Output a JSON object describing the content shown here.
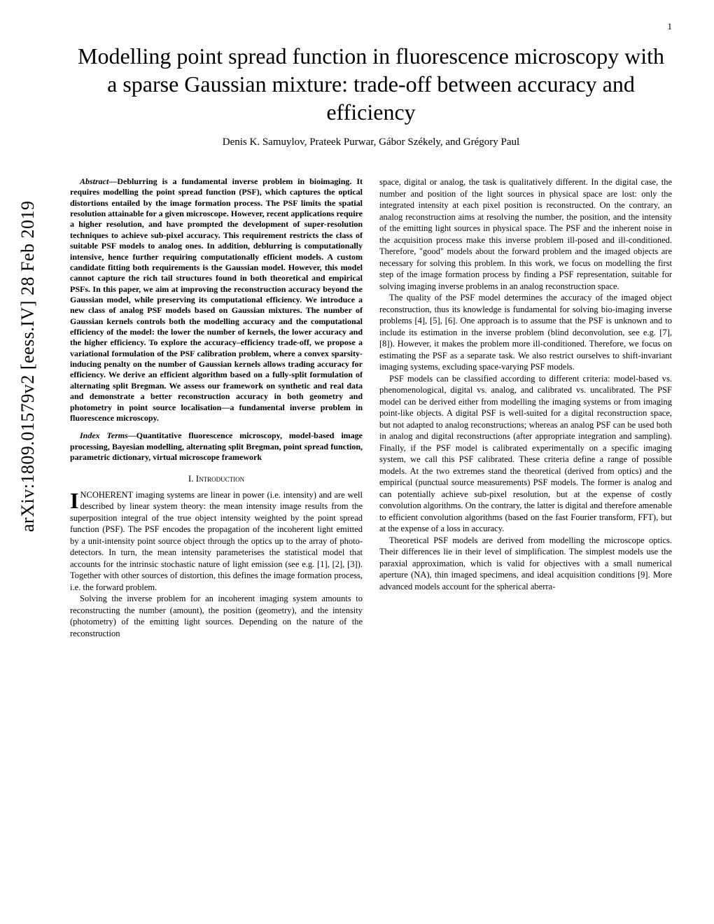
{
  "page_number": "1",
  "arxiv_id": "arXiv:1809.01579v2  [eess.IV]  28 Feb 2019",
  "title": "Modelling point spread function in fluorescence microscopy with a sparse Gaussian mixture: trade-off between accuracy and efficiency",
  "authors": "Denis K. Samuylov, Prateek Purwar, Gábor Székely, and Grégory Paul",
  "abstract_label": "Abstract",
  "abstract_text": "—Deblurring is a fundamental inverse problem in bioimaging. It requires modelling the point spread function (PSF), which captures the optical distortions entailed by the image formation process. The PSF limits the spatial resolution attainable for a given microscope. However, recent applications require a higher resolution, and have prompted the development of super-resolution techniques to achieve sub-pixel accuracy. This requirement restricts the class of suitable PSF models to analog ones. In addition, deblurring is computationally intensive, hence further requiring computationally efficient models. A custom candidate fitting both requirements is the Gaussian model. However, this model cannot capture the rich tail structures found in both theoretical and empirical PSFs. In this paper, we aim at improving the reconstruction accuracy beyond the Gaussian model, while preserving its computational efficiency. We introduce a new class of analog PSF models based on Gaussian mixtures. The number of Gaussian kernels controls both the modelling accuracy and the computational efficiency of the model: the lower the number of kernels, the lower accuracy and the higher efficiency. To explore the accuracy–efficiency trade-off, we propose a variational formulation of the PSF calibration problem, where a convex sparsity-inducing penalty on the number of Gaussian kernels allows trading accuracy for efficiency. We derive an efficient algorithm based on a fully-split formulation of alternating split Bregman. We assess our framework on synthetic and real data and demonstrate a better reconstruction accuracy in both geometry and photometry in point source localisation—a fundamental inverse problem in fluorescence microscopy.",
  "index_terms_label": "Index Terms",
  "index_terms_text": "—Quantitative fluorescence microscopy, model-based image processing, Bayesian modelling, alternating split Bregman, point spread function, parametric dictionary, virtual microscope framework",
  "section_number": "I.",
  "section_title": "Introduction",
  "intro_p1_dropcap": "I",
  "intro_p1": "NCOHERENT imaging systems are linear in power (i.e. intensity) and are well described by linear system theory: the mean intensity image results from the superposition integral of the true object intensity weighted by the point spread function (PSF). The PSF encodes the propagation of the incoherent light emitted by a unit-intensity point source object through the optics up to the array of photo-detectors. In turn, the mean intensity parameterises the statistical model that accounts for the intrinsic stochastic nature of light emission (see e.g. [1], [2], [3]). Together with other sources of distortion, this defines the image formation process, i.e. the forward problem.",
  "intro_p2": "Solving the inverse problem for an incoherent imaging system amounts to reconstructing the number (amount), the position (geometry), and the intensity (photometry) of the emitting light sources. Depending on the nature of the reconstruction",
  "col2_p1": "space, digital or analog, the task is qualitatively different. In the digital case, the number and position of the light sources in physical space are lost: only the integrated intensity at each pixel position is reconstructed. On the contrary, an analog reconstruction aims at resolving the number, the position, and the intensity of the emitting light sources in physical space. The PSF and the inherent noise in the acquisition process make this inverse problem ill-posed and ill-conditioned. Therefore, \"good\" models about the forward problem and the imaged objects are necessary for solving this problem. In this work, we focus on modelling the first step of the image formation process by finding a PSF representation, suitable for solving imaging inverse problems in an analog reconstruction space.",
  "col2_p2": "The quality of the PSF model determines the accuracy of the imaged object reconstruction, thus its knowledge is fundamental for solving bio-imaging inverse problems [4], [5], [6]. One approach is to assume that the PSF is unknown and to include its estimation in the inverse problem (blind deconvolution, see e.g. [7], [8]). However, it makes the problem more ill-conditioned. Therefore, we focus on estimating the PSF as a separate task. We also restrict ourselves to shift-invariant imaging systems, excluding space-varying PSF models.",
  "col2_p3": "PSF models can be classified according to different criteria: model-based vs. phenomenological, digital vs. analog, and calibrated vs. uncalibrated. The PSF model can be derived either from modelling the imaging systems or from imaging point-like objects. A digital PSF is well-suited for a digital reconstruction space, but not adapted to analog reconstructions; whereas an analog PSF can be used both in analog and digital reconstructions (after appropriate integration and sampling). Finally, if the PSF model is calibrated experimentally on a specific imaging system, we call this PSF calibrated. These criteria define a range of possible models. At the two extremes stand the theoretical (derived from optics) and the empirical (punctual source measurements) PSF models. The former is analog and can potentially achieve sub-pixel resolution, but at the expense of costly convolution algorithms. On the contrary, the latter is digital and therefore amenable to efficient convolution algorithms (based on the fast Fourier transform, FFT), but at the expense of a loss in accuracy.",
  "col2_p4": "Theoretical PSF models are derived from modelling the microscope optics. Their differences lie in their level of simplification. The simplest models use the paraxial approximation, which is valid for objectives with a small numerical aperture (NA), thin imaged specimens, and ideal acquisition conditions [9]. More advanced models account for the spherical aberra-"
}
